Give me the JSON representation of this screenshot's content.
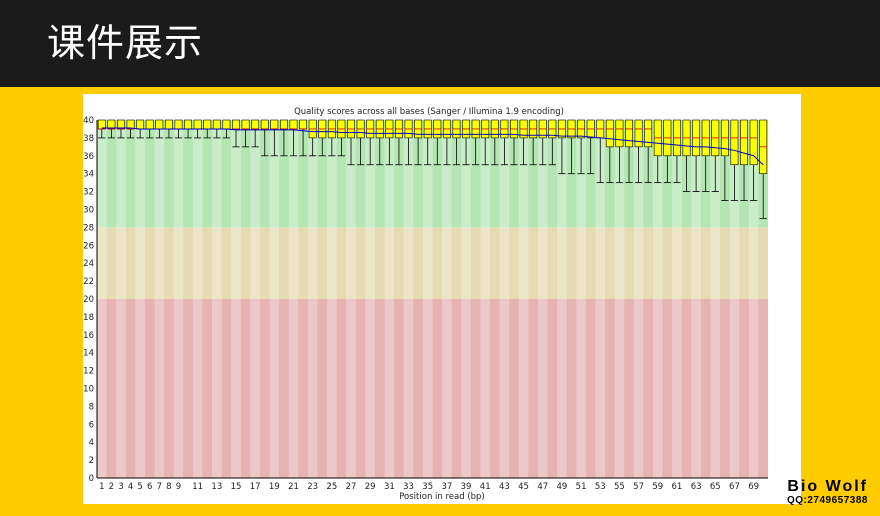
{
  "slide": {
    "title": "课件展示",
    "watermark_name": "Bio  Wolf",
    "watermark_qq": "QQ:2749657388"
  },
  "colors": {
    "header_bg": "#1b1b1b",
    "slide_bg": "#ffcc00",
    "zone_good": "#b3e6b3",
    "zone_mid": "#e6dcb3",
    "zone_bad": "#e6b3b3",
    "box_fill": "#ffff00",
    "mean_line": "#0000cc"
  },
  "chart_data": {
    "type": "box",
    "title": "Quality scores across all bases (Sanger / Illumina 1.9 encoding)",
    "xlabel": "Position in read (bp)",
    "ylabel": "",
    "ylim": [
      0,
      40
    ],
    "y_ticks": [
      0,
      2,
      4,
      6,
      8,
      10,
      12,
      14,
      16,
      18,
      20,
      22,
      24,
      26,
      28,
      30,
      32,
      34,
      36,
      38,
      40
    ],
    "x_tick_labels": [
      "1",
      "2",
      "3",
      "4",
      "5",
      "6",
      "7",
      "8",
      "9",
      "11",
      "13",
      "15",
      "17",
      "19",
      "21",
      "23",
      "25",
      "27",
      "29",
      "31",
      "33",
      "35",
      "37",
      "39",
      "41",
      "43",
      "45",
      "47",
      "49",
      "51",
      "53",
      "55",
      "57",
      "59",
      "61",
      "63",
      "65",
      "67",
      "69"
    ],
    "x_tick_positions": [
      1,
      2,
      3,
      4,
      5,
      6,
      7,
      8,
      9,
      11,
      13,
      15,
      17,
      19,
      21,
      23,
      25,
      27,
      29,
      31,
      33,
      35,
      37,
      39,
      41,
      43,
      45,
      47,
      49,
      51,
      53,
      55,
      57,
      59,
      61,
      63,
      65,
      67,
      69
    ],
    "quality_zones": [
      {
        "from": 28,
        "to": 40,
        "label": "good"
      },
      {
        "from": 20,
        "to": 28,
        "label": "reasonable"
      },
      {
        "from": 0,
        "to": 20,
        "label": "poor"
      }
    ],
    "positions": [
      1,
      2,
      3,
      4,
      5,
      6,
      7,
      8,
      9,
      10,
      11,
      12,
      13,
      14,
      15,
      16,
      17,
      18,
      19,
      20,
      21,
      22,
      23,
      24,
      25,
      26,
      27,
      28,
      29,
      30,
      31,
      32,
      33,
      34,
      35,
      36,
      37,
      38,
      39,
      40,
      41,
      42,
      43,
      44,
      45,
      46,
      47,
      48,
      49,
      50,
      51,
      52,
      53,
      54,
      55,
      56,
      57,
      58,
      59,
      60,
      61,
      62,
      63,
      64,
      65,
      66,
      67,
      68,
      69,
      70
    ],
    "q1": [
      39,
      39,
      39,
      39,
      39,
      39,
      39,
      39,
      39,
      39,
      39,
      39,
      39,
      39,
      39,
      39,
      39,
      39,
      39,
      39,
      39,
      39,
      38,
      38,
      38,
      38,
      38,
      38,
      38,
      38,
      38,
      38,
      38,
      38,
      38,
      38,
      38,
      38,
      38,
      38,
      38,
      38,
      38,
      38,
      38,
      38,
      38,
      38,
      38,
      38,
      38,
      38,
      38,
      37,
      37,
      37,
      37,
      37,
      36,
      36,
      36,
      36,
      36,
      36,
      36,
      36,
      35,
      35,
      35,
      34
    ],
    "q3": [
      40,
      40,
      40,
      40,
      40,
      40,
      40,
      40,
      40,
      40,
      40,
      40,
      40,
      40,
      40,
      40,
      40,
      40,
      40,
      40,
      40,
      40,
      40,
      40,
      40,
      40,
      40,
      40,
      40,
      40,
      40,
      40,
      40,
      40,
      40,
      40,
      40,
      40,
      40,
      40,
      40,
      40,
      40,
      40,
      40,
      40,
      40,
      40,
      40,
      40,
      40,
      40,
      40,
      40,
      40,
      40,
      40,
      40,
      40,
      40,
      40,
      40,
      40,
      40,
      40,
      40,
      40,
      40,
      40,
      40
    ],
    "median": [
      39,
      39,
      39,
      39,
      39,
      39,
      39,
      39,
      39,
      39,
      39,
      39,
      39,
      39,
      39,
      39,
      39,
      39,
      39,
      39,
      39,
      39,
      39,
      39,
      39,
      39,
      39,
      39,
      39,
      39,
      39,
      39,
      39,
      39,
      39,
      39,
      39,
      39,
      39,
      39,
      39,
      39,
      39,
      39,
      39,
      39,
      39,
      39,
      39,
      39,
      39,
      39,
      39,
      39,
      39,
      39,
      39,
      39,
      38,
      38,
      38,
      38,
      38,
      38,
      38,
      38,
      38,
      38,
      38,
      37
    ],
    "lower_whisker": [
      38,
      38,
      38,
      38,
      38,
      38,
      38,
      38,
      38,
      38,
      38,
      38,
      38,
      38,
      37,
      37,
      37,
      36,
      36,
      36,
      36,
      36,
      36,
      36,
      36,
      36,
      35,
      35,
      35,
      35,
      35,
      35,
      35,
      35,
      35,
      35,
      35,
      35,
      35,
      35,
      35,
      35,
      35,
      35,
      35,
      35,
      35,
      35,
      34,
      34,
      34,
      34,
      33,
      33,
      33,
      33,
      33,
      33,
      33,
      33,
      33,
      32,
      32,
      32,
      32,
      31,
      31,
      31,
      31,
      29
    ],
    "upper_whisker": [
      40,
      40,
      40,
      40,
      40,
      40,
      40,
      40,
      40,
      40,
      40,
      40,
      40,
      40,
      40,
      40,
      40,
      40,
      40,
      40,
      40,
      40,
      40,
      40,
      40,
      40,
      40,
      40,
      40,
      40,
      40,
      40,
      40,
      40,
      40,
      40,
      40,
      40,
      40,
      40,
      40,
      40,
      40,
      40,
      40,
      40,
      40,
      40,
      40,
      40,
      40,
      40,
      40,
      40,
      40,
      40,
      40,
      40,
      40,
      40,
      40,
      40,
      40,
      40,
      40,
      40,
      40,
      40,
      40,
      40
    ],
    "mean": [
      39.1,
      39.1,
      39.1,
      39.1,
      39.0,
      39.0,
      39.0,
      39.0,
      39.0,
      39.0,
      39.0,
      39.0,
      39.0,
      39.0,
      38.9,
      38.9,
      38.9,
      38.9,
      38.9,
      38.9,
      38.9,
      38.8,
      38.7,
      38.7,
      38.7,
      38.6,
      38.6,
      38.6,
      38.5,
      38.5,
      38.5,
      38.5,
      38.5,
      38.4,
      38.4,
      38.4,
      38.4,
      38.4,
      38.4,
      38.4,
      38.4,
      38.4,
      38.4,
      38.4,
      38.3,
      38.3,
      38.3,
      38.3,
      38.2,
      38.2,
      38.2,
      38.1,
      38.0,
      37.9,
      37.8,
      37.7,
      37.6,
      37.5,
      37.4,
      37.3,
      37.2,
      37.1,
      37.0,
      37.0,
      36.9,
      36.8,
      36.6,
      36.3,
      36.0,
      35.0
    ]
  }
}
